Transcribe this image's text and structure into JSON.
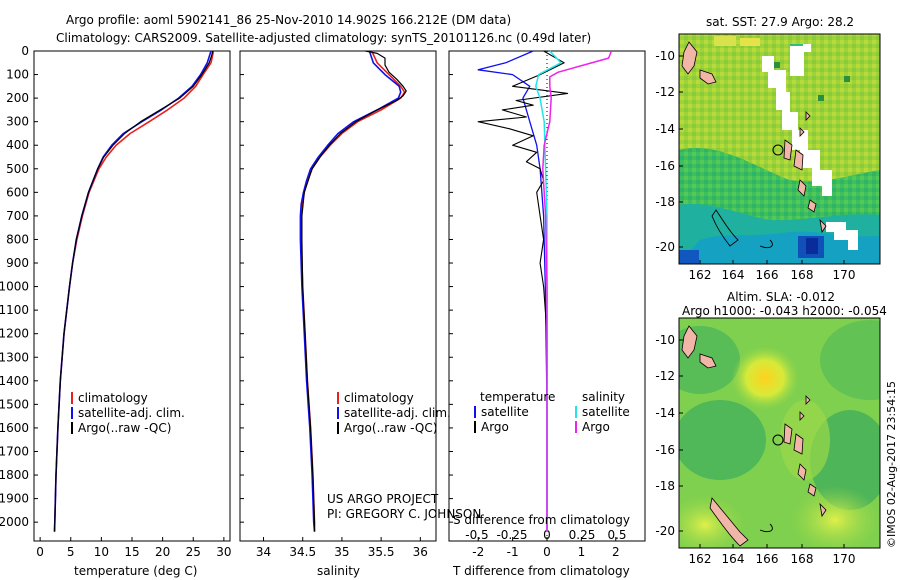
{
  "header": {
    "line1": "Argo profile: aoml 5902141_86 25-Nov-2010 14.902S 166.212E (DM data)",
    "line2": "Climatology: CARS2009. Satellite-adjusted climatology: synTS_20101126.nc (0.49d later)"
  },
  "colors": {
    "climatology": "#e8201c",
    "satellite": "#1010ee",
    "argo": "#000000",
    "sal_satellite": "#22e6e6",
    "sal_argo": "#ee22ee"
  },
  "legend": {
    "climatology": "climatology",
    "satellite": "satellite-adj. clim.",
    "argo": "Argo(..raw -QC)"
  },
  "diff_legend": {
    "temp_title": "temperature",
    "sal_title": "salinity",
    "satellite": "satellite",
    "argo": "Argo"
  },
  "credits": {
    "project": "US ARGO PROJECT",
    "pi": "PI: GREGORY C. JOHNSON"
  },
  "watermark": "©IMOS 02-Aug-2017 23:54:15",
  "maps": {
    "sst_title": "sat. SST: 27.9 Argo: 28.2",
    "sla_title1": "Altim. SLA: -0.012",
    "sla_title2": "Argo h1000: -0.043 h2000: -0.054",
    "xticks": [
      "162",
      "164",
      "166",
      "168",
      "170"
    ],
    "yticks": [
      "-10",
      "-12",
      "-14",
      "-16",
      "-18",
      "-20"
    ]
  },
  "chart_data": [
    {
      "type": "line",
      "id": "temperature",
      "xlabel": "temperature (deg C)",
      "ylabel": "",
      "xlim": [
        -1,
        31
      ],
      "ylim": [
        2080,
        0
      ],
      "xticks": [
        0,
        5,
        10,
        15,
        20,
        25,
        30
      ],
      "yticks": [
        0,
        100,
        200,
        300,
        400,
        500,
        600,
        700,
        800,
        900,
        1000,
        1100,
        1200,
        1300,
        1400,
        1500,
        1600,
        1700,
        1800,
        1900,
        2000
      ],
      "series": [
        {
          "name": "climatology",
          "depth": [
            0,
            50,
            100,
            150,
            200,
            250,
            300,
            350,
            400,
            450,
            500,
            600,
            700,
            800,
            900,
            1000,
            1200,
            1400,
            1600,
            1800,
            2000,
            2040
          ],
          "values": [
            28.3,
            27.9,
            26.6,
            25.4,
            23.5,
            20.8,
            17.8,
            14.7,
            12.4,
            10.8,
            9.6,
            8.0,
            6.9,
            6.0,
            5.3,
            4.8,
            3.9,
            3.3,
            2.9,
            2.6,
            2.4,
            2.35
          ]
        },
        {
          "name": "satellite-adj. clim.",
          "depth": [
            0,
            50,
            100,
            150,
            200,
            250,
            300,
            350,
            400,
            450,
            500,
            600,
            700,
            800,
            900,
            1000,
            1200,
            1400,
            1600,
            1800,
            2000,
            2040
          ],
          "values": [
            27.9,
            27.3,
            26.2,
            24.8,
            22.6,
            19.8,
            16.6,
            13.6,
            11.7,
            10.3,
            9.4,
            7.9,
            6.8,
            5.9,
            5.3,
            4.8,
            3.9,
            3.3,
            2.9,
            2.6,
            2.4,
            2.35
          ]
        },
        {
          "name": "Argo(..raw -QC)",
          "depth": [
            0,
            20,
            50,
            80,
            100,
            150,
            200,
            250,
            300,
            350,
            400,
            450,
            500,
            600,
            700,
            800,
            900,
            1000,
            1200,
            1400,
            1600,
            1800,
            2000,
            2040
          ],
          "values": [
            28.2,
            28.0,
            27.6,
            26.9,
            26.4,
            25.0,
            22.8,
            19.6,
            16.4,
            13.8,
            11.9,
            10.4,
            9.4,
            7.9,
            6.8,
            5.9,
            5.3,
            4.8,
            3.9,
            3.3,
            2.9,
            2.6,
            2.4,
            2.35
          ]
        }
      ]
    },
    {
      "type": "line",
      "id": "salinity",
      "xlabel": "salinity",
      "ylabel": "",
      "xlim": [
        33.7,
        36.2
      ],
      "ylim": [
        2080,
        0
      ],
      "xticks": [
        34,
        34.5,
        35,
        35.5,
        36
      ],
      "series": [
        {
          "name": "climatology",
          "depth": [
            0,
            50,
            100,
            150,
            175,
            200,
            250,
            300,
            350,
            400,
            450,
            500,
            550,
            600,
            650,
            700,
            800,
            1000,
            1200,
            1400,
            1600,
            1800,
            2000,
            2040
          ],
          "values": [
            35.38,
            35.45,
            35.6,
            35.75,
            35.8,
            35.75,
            35.5,
            35.2,
            35.0,
            34.85,
            34.72,
            34.62,
            34.56,
            34.52,
            34.49,
            34.48,
            34.48,
            34.5,
            34.53,
            34.56,
            34.6,
            34.63,
            34.65,
            34.65
          ]
        },
        {
          "name": "satellite-adj. clim.",
          "depth": [
            0,
            50,
            100,
            150,
            175,
            200,
            250,
            300,
            350,
            400,
            450,
            500,
            550,
            600,
            650,
            700,
            800,
            1000,
            1200,
            1400,
            1600,
            1800,
            2000,
            2040
          ],
          "values": [
            35.35,
            35.4,
            35.55,
            35.73,
            35.75,
            35.72,
            35.45,
            35.15,
            34.95,
            34.82,
            34.7,
            34.6,
            34.55,
            34.51,
            34.48,
            34.47,
            34.47,
            34.49,
            34.52,
            34.55,
            34.59,
            34.62,
            34.64,
            34.65
          ]
        },
        {
          "name": "Argo(..raw -QC)",
          "depth": [
            0,
            10,
            30,
            60,
            90,
            120,
            150,
            170,
            190,
            210,
            250,
            300,
            350,
            400,
            450,
            500,
            600,
            700,
            800,
            1000,
            1200,
            1400,
            1600,
            1800,
            2000,
            2040
          ],
          "values": [
            35.3,
            35.45,
            35.55,
            35.55,
            35.6,
            35.7,
            35.78,
            35.82,
            35.78,
            35.7,
            35.45,
            35.18,
            34.98,
            34.84,
            34.72,
            34.62,
            34.52,
            34.49,
            34.49,
            34.5,
            34.53,
            34.56,
            34.6,
            34.63,
            34.65,
            34.65
          ]
        }
      ]
    },
    {
      "type": "line",
      "id": "difference",
      "title_top": "S difference from climatology",
      "xlabel": "T difference from climatology",
      "xlim": [
        -2.85,
        2.85
      ],
      "ylim": [
        2080,
        0
      ],
      "top_ticks": [
        -0.5,
        -0.25,
        0,
        0.25,
        0.5
      ],
      "top_tick_labels": [
        "-0.5",
        "-0.25",
        "0",
        "0.25",
        "0.5"
      ],
      "bottom_ticks": [
        -2,
        -1,
        0,
        1,
        2
      ],
      "series": [
        {
          "name": "temperature satellite",
          "depth": [
            0,
            50,
            80,
            100,
            150,
            200,
            300,
            400,
            500,
            700,
            1000,
            1500,
            2040
          ],
          "values": [
            -0.4,
            -1.2,
            -2.0,
            -1.0,
            -0.5,
            -0.7,
            -0.5,
            -0.3,
            -0.2,
            -0.1,
            -0.05,
            0,
            0
          ]
        },
        {
          "name": "temperature Argo",
          "depth": [
            0,
            50,
            100,
            150,
            180,
            210,
            230,
            250,
            280,
            300,
            330,
            360,
            400,
            430,
            470,
            500,
            550,
            600,
            700,
            800,
            900,
            1000,
            1200,
            1500,
            1800,
            2040
          ],
          "values": [
            -0.1,
            0.5,
            -0.2,
            -1.0,
            0.6,
            -0.9,
            -0.4,
            -1.3,
            -0.6,
            -2.0,
            -1.1,
            -0.4,
            -1.0,
            -0.3,
            -0.6,
            -0.2,
            -0.1,
            -0.3,
            -0.2,
            -0.1,
            -0.2,
            -0.1,
            0,
            0,
            0,
            0
          ]
        },
        {
          "name": "salinity satellite",
          "depth": [
            0,
            50,
            100,
            150,
            200,
            300,
            500,
            700,
            1000,
            1500,
            2040
          ],
          "values": [
            0.02,
            0.1,
            -0.06,
            -0.08,
            -0.05,
            -0.02,
            -0.01,
            0,
            0,
            0,
            0
          ]
        },
        {
          "name": "salinity Argo",
          "depth": [
            0,
            30,
            60,
            90,
            110,
            150,
            200,
            300,
            400,
            500,
            700,
            1000,
            1500,
            2040
          ],
          "values": [
            0.46,
            0.44,
            0.26,
            0.08,
            0.02,
            0.02,
            0.03,
            0.02,
            -0.02,
            -0.03,
            -0.01,
            0,
            0,
            0
          ]
        }
      ]
    }
  ]
}
